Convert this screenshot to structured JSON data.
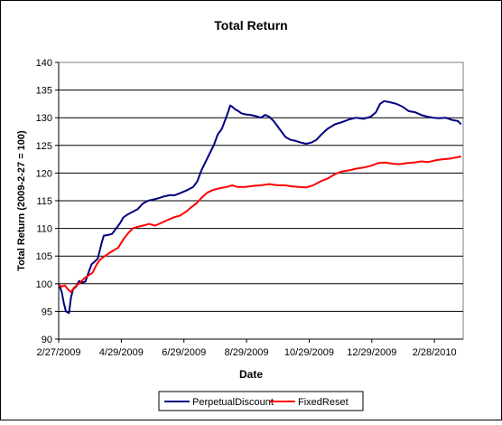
{
  "chart_data": {
    "type": "line",
    "title": "Total Return",
    "xlabel": "Date",
    "ylabel": "Total Return (2009-2-27 = 100)",
    "ylim": [
      90,
      140
    ],
    "y_ticks": [
      90,
      95,
      100,
      105,
      110,
      115,
      120,
      125,
      130,
      135,
      140
    ],
    "x_range": [
      "2009-02-27",
      "2010-03-28"
    ],
    "x_ticks": [
      {
        "date": "2009-02-27",
        "label": "2/27/2009"
      },
      {
        "date": "2009-04-29",
        "label": "4/29/2009"
      },
      {
        "date": "2009-06-29",
        "label": "6/29/2009"
      },
      {
        "date": "2009-08-29",
        "label": "8/29/2009"
      },
      {
        "date": "2009-10-29",
        "label": "10/29/2009"
      },
      {
        "date": "2009-12-29",
        "label": "12/29/2009"
      },
      {
        "date": "2010-02-28",
        "label": "2/28/2010"
      }
    ],
    "grid": "horizontal",
    "legend": "bottom",
    "series": [
      {
        "name": "PerpetualDiscount",
        "color": "#000080",
        "points": [
          [
            "2009-02-27",
            100.0
          ],
          [
            "2009-03-02",
            98.5
          ],
          [
            "2009-03-04",
            96.5
          ],
          [
            "2009-03-06",
            95.0
          ],
          [
            "2009-03-09",
            94.7
          ],
          [
            "2009-03-11",
            97.5
          ],
          [
            "2009-03-13",
            99.0
          ],
          [
            "2009-03-16",
            99.5
          ],
          [
            "2009-03-19",
            100.5
          ],
          [
            "2009-03-22",
            100.2
          ],
          [
            "2009-03-25",
            100.4
          ],
          [
            "2009-03-28",
            102.0
          ],
          [
            "2009-03-31",
            103.5
          ],
          [
            "2009-04-03",
            104.0
          ],
          [
            "2009-04-06",
            104.5
          ],
          [
            "2009-04-08",
            106.0
          ],
          [
            "2009-04-10",
            107.5
          ],
          [
            "2009-04-12",
            108.7
          ],
          [
            "2009-04-16",
            108.8
          ],
          [
            "2009-04-20",
            109.0
          ],
          [
            "2009-04-24",
            110.0
          ],
          [
            "2009-04-28",
            111.0
          ],
          [
            "2009-05-01",
            112.0
          ],
          [
            "2009-05-05",
            112.5
          ],
          [
            "2009-05-10",
            113.0
          ],
          [
            "2009-05-15",
            113.5
          ],
          [
            "2009-05-20",
            114.5
          ],
          [
            "2009-05-25",
            115.0
          ],
          [
            "2009-06-01",
            115.3
          ],
          [
            "2009-06-05",
            115.5
          ],
          [
            "2009-06-10",
            115.8
          ],
          [
            "2009-06-15",
            116.0
          ],
          [
            "2009-06-20",
            116.0
          ],
          [
            "2009-06-27",
            116.5
          ],
          [
            "2009-07-03",
            117.0
          ],
          [
            "2009-07-08",
            117.5
          ],
          [
            "2009-07-12",
            118.5
          ],
          [
            "2009-07-16",
            120.5
          ],
          [
            "2009-07-20",
            122.0
          ],
          [
            "2009-07-24",
            123.5
          ],
          [
            "2009-07-28",
            125.0
          ],
          [
            "2009-08-01",
            127.0
          ],
          [
            "2009-08-05",
            128.0
          ],
          [
            "2009-08-08",
            129.5
          ],
          [
            "2009-08-11",
            131.0
          ],
          [
            "2009-08-13",
            132.2
          ],
          [
            "2009-08-15",
            132.0
          ],
          [
            "2009-08-18",
            131.5
          ],
          [
            "2009-08-21",
            131.2
          ],
          [
            "2009-08-24",
            130.8
          ],
          [
            "2009-08-28",
            130.6
          ],
          [
            "2009-09-02",
            130.5
          ],
          [
            "2009-09-07",
            130.3
          ],
          [
            "2009-09-12",
            130.0
          ],
          [
            "2009-09-16",
            130.5
          ],
          [
            "2009-09-20",
            130.2
          ],
          [
            "2009-09-24",
            129.5
          ],
          [
            "2009-09-28",
            128.5
          ],
          [
            "2009-10-02",
            127.5
          ],
          [
            "2009-10-06",
            126.5
          ],
          [
            "2009-10-11",
            126.0
          ],
          [
            "2009-10-16",
            125.8
          ],
          [
            "2009-10-21",
            125.5
          ],
          [
            "2009-10-26",
            125.3
          ],
          [
            "2009-10-31",
            125.5
          ],
          [
            "2009-11-05",
            126.0
          ],
          [
            "2009-11-10",
            127.0
          ],
          [
            "2009-11-16",
            128.0
          ],
          [
            "2009-11-23",
            128.8
          ],
          [
            "2009-11-30",
            129.2
          ],
          [
            "2009-12-07",
            129.7
          ],
          [
            "2009-12-14",
            130.0
          ],
          [
            "2009-12-21",
            129.8
          ],
          [
            "2009-12-28",
            130.2
          ],
          [
            "2010-01-02",
            131.0
          ],
          [
            "2010-01-06",
            132.5
          ],
          [
            "2010-01-10",
            133.0
          ],
          [
            "2010-01-16",
            132.8
          ],
          [
            "2010-01-22",
            132.5
          ],
          [
            "2010-01-28",
            132.0
          ],
          [
            "2010-02-03",
            131.2
          ],
          [
            "2010-02-09",
            131.0
          ],
          [
            "2010-02-15",
            130.5
          ],
          [
            "2010-02-21",
            130.2
          ],
          [
            "2010-02-27",
            130.0
          ],
          [
            "2010-03-05",
            129.9
          ],
          [
            "2010-03-11",
            130.0
          ],
          [
            "2010-03-17",
            129.6
          ],
          [
            "2010-03-23",
            129.4
          ],
          [
            "2010-03-26",
            128.8
          ]
        ]
      },
      {
        "name": "FixedReset",
        "color": "#ff0000",
        "points": [
          [
            "2009-02-27",
            99.8
          ],
          [
            "2009-03-02",
            99.5
          ],
          [
            "2009-03-05",
            99.7
          ],
          [
            "2009-03-08",
            99.0
          ],
          [
            "2009-03-11",
            98.5
          ],
          [
            "2009-03-14",
            99.3
          ],
          [
            "2009-03-17",
            99.8
          ],
          [
            "2009-03-20",
            100.2
          ],
          [
            "2009-03-24",
            101.0
          ],
          [
            "2009-03-28",
            101.5
          ],
          [
            "2009-04-01",
            102.0
          ],
          [
            "2009-04-05",
            103.5
          ],
          [
            "2009-04-09",
            104.5
          ],
          [
            "2009-04-13",
            105.0
          ],
          [
            "2009-04-17",
            105.5
          ],
          [
            "2009-04-21",
            106.0
          ],
          [
            "2009-04-26",
            106.5
          ],
          [
            "2009-05-01",
            108.0
          ],
          [
            "2009-05-05",
            109.0
          ],
          [
            "2009-05-10",
            110.0
          ],
          [
            "2009-05-15",
            110.3
          ],
          [
            "2009-05-20",
            110.5
          ],
          [
            "2009-05-26",
            110.8
          ],
          [
            "2009-06-01",
            110.5
          ],
          [
            "2009-06-07",
            111.0
          ],
          [
            "2009-06-13",
            111.5
          ],
          [
            "2009-06-19",
            112.0
          ],
          [
            "2009-06-25",
            112.3
          ],
          [
            "2009-07-01",
            113.0
          ],
          [
            "2009-07-06",
            113.8
          ],
          [
            "2009-07-11",
            114.5
          ],
          [
            "2009-07-16",
            115.5
          ],
          [
            "2009-07-22",
            116.5
          ],
          [
            "2009-07-28",
            117.0
          ],
          [
            "2009-08-04",
            117.3
          ],
          [
            "2009-08-10",
            117.5
          ],
          [
            "2009-08-15",
            117.8
          ],
          [
            "2009-08-20",
            117.5
          ],
          [
            "2009-08-28",
            117.5
          ],
          [
            "2009-09-05",
            117.7
          ],
          [
            "2009-09-12",
            117.8
          ],
          [
            "2009-09-20",
            118.0
          ],
          [
            "2009-09-28",
            117.8
          ],
          [
            "2009-10-05",
            117.8
          ],
          [
            "2009-10-12",
            117.6
          ],
          [
            "2009-10-19",
            117.5
          ],
          [
            "2009-10-26",
            117.4
          ],
          [
            "2009-11-02",
            117.8
          ],
          [
            "2009-11-09",
            118.5
          ],
          [
            "2009-11-16",
            119.0
          ],
          [
            "2009-11-23",
            119.8
          ],
          [
            "2009-11-30",
            120.3
          ],
          [
            "2009-12-07",
            120.5
          ],
          [
            "2009-12-14",
            120.8
          ],
          [
            "2009-12-21",
            121.0
          ],
          [
            "2009-12-28",
            121.3
          ],
          [
            "2010-01-04",
            121.8
          ],
          [
            "2010-01-11",
            121.9
          ],
          [
            "2010-01-18",
            121.7
          ],
          [
            "2010-01-25",
            121.6
          ],
          [
            "2010-02-01",
            121.8
          ],
          [
            "2010-02-08",
            121.9
          ],
          [
            "2010-02-15",
            122.1
          ],
          [
            "2010-02-22",
            122.0
          ],
          [
            "2010-03-01",
            122.3
          ],
          [
            "2010-03-08",
            122.5
          ],
          [
            "2010-03-15",
            122.6
          ],
          [
            "2010-03-20",
            122.8
          ],
          [
            "2010-03-26",
            123.0
          ]
        ]
      }
    ]
  }
}
